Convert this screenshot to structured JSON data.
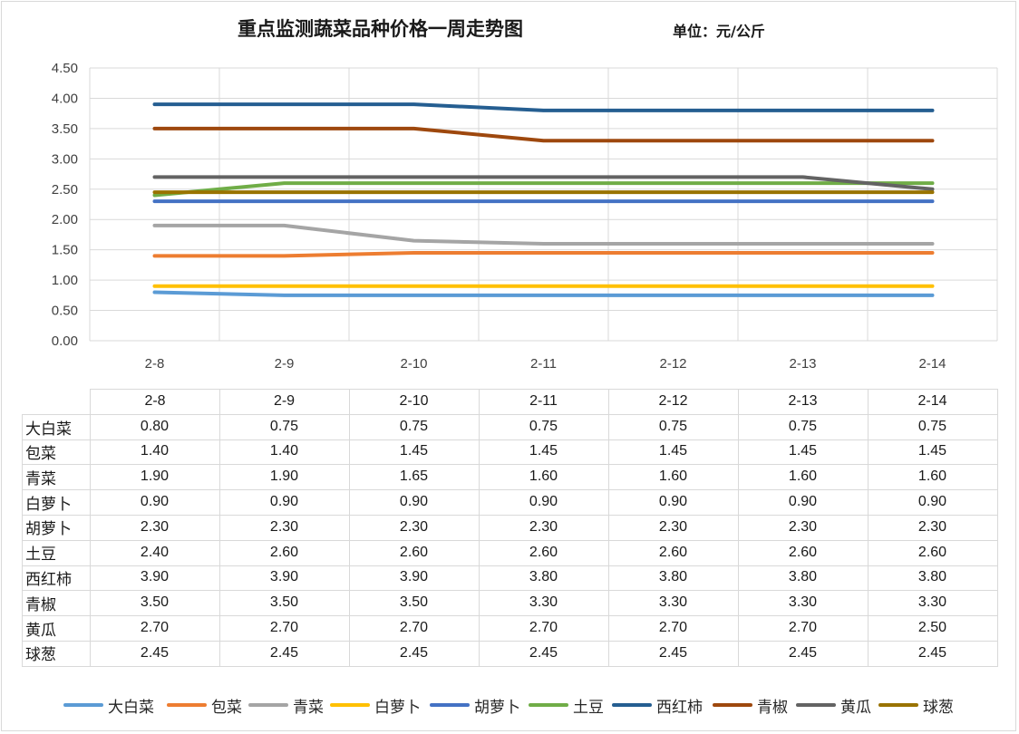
{
  "title": "重点监测蔬菜品种价格一周走势图",
  "unit": "单位：元/公斤",
  "chart_data": {
    "type": "line",
    "title": "重点监测蔬菜品种价格一周走势图",
    "unit": "单位：元/公斤",
    "categories": [
      "2-8",
      "2-9",
      "2-10",
      "2-11",
      "2-12",
      "2-13",
      "2-14"
    ],
    "ylim": [
      0,
      4.5
    ],
    "yticks": [
      "0.00",
      "0.50",
      "1.00",
      "1.50",
      "2.00",
      "2.50",
      "3.00",
      "3.50",
      "4.00",
      "4.50"
    ],
    "grid": true,
    "legend": "bottom",
    "series": [
      {
        "name": "大白菜",
        "color": "#5b9bd5",
        "values": [
          0.8,
          0.75,
          0.75,
          0.75,
          0.75,
          0.75,
          0.75
        ],
        "labels": [
          "0.80",
          "0.75",
          "0.75",
          "0.75",
          "0.75",
          "0.75",
          "0.75"
        ]
      },
      {
        "name": "包菜",
        "color": "#ed7d31",
        "values": [
          1.4,
          1.4,
          1.45,
          1.45,
          1.45,
          1.45,
          1.45
        ],
        "labels": [
          "1.40",
          "1.40",
          "1.45",
          "1.45",
          "1.45",
          "1.45",
          "1.45"
        ]
      },
      {
        "name": "青菜",
        "color": "#a5a5a5",
        "values": [
          1.9,
          1.9,
          1.65,
          1.6,
          1.6,
          1.6,
          1.6
        ],
        "labels": [
          "1.90",
          "1.90",
          "1.65",
          "1.60",
          "1.60",
          "1.60",
          "1.60"
        ]
      },
      {
        "name": "白萝卜",
        "color": "#ffc000",
        "values": [
          0.9,
          0.9,
          0.9,
          0.9,
          0.9,
          0.9,
          0.9
        ],
        "labels": [
          "0.90",
          "0.90",
          "0.90",
          "0.90",
          "0.90",
          "0.90",
          "0.90"
        ]
      },
      {
        "name": "胡萝卜",
        "color": "#4472c4",
        "values": [
          2.3,
          2.3,
          2.3,
          2.3,
          2.3,
          2.3,
          2.3
        ],
        "labels": [
          "2.30",
          "2.30",
          "2.30",
          "2.30",
          "2.30",
          "2.30",
          "2.30"
        ]
      },
      {
        "name": "土豆",
        "color": "#70ad47",
        "values": [
          2.4,
          2.6,
          2.6,
          2.6,
          2.6,
          2.6,
          2.6
        ],
        "labels": [
          "2.40",
          "2.60",
          "2.60",
          "2.60",
          "2.60",
          "2.60",
          "2.60"
        ]
      },
      {
        "name": "西红柿",
        "color": "#255e91",
        "values": [
          3.9,
          3.9,
          3.9,
          3.8,
          3.8,
          3.8,
          3.8
        ],
        "labels": [
          "3.90",
          "3.90",
          "3.90",
          "3.80",
          "3.80",
          "3.80",
          "3.80"
        ]
      },
      {
        "name": "青椒",
        "color": "#9e480e",
        "values": [
          3.5,
          3.5,
          3.5,
          3.3,
          3.3,
          3.3,
          3.3
        ],
        "labels": [
          "3.50",
          "3.50",
          "3.50",
          "3.30",
          "3.30",
          "3.30",
          "3.30"
        ]
      },
      {
        "name": "黄瓜",
        "color": "#636363",
        "values": [
          2.7,
          2.7,
          2.7,
          2.7,
          2.7,
          2.7,
          2.5
        ],
        "labels": [
          "2.70",
          "2.70",
          "2.70",
          "2.70",
          "2.70",
          "2.70",
          "2.50"
        ]
      },
      {
        "name": "球葱",
        "color": "#997300",
        "values": [
          2.45,
          2.45,
          2.45,
          2.45,
          2.45,
          2.45,
          2.45
        ],
        "labels": [
          "2.45",
          "2.45",
          "2.45",
          "2.45",
          "2.45",
          "2.45",
          "2.45"
        ]
      }
    ]
  }
}
